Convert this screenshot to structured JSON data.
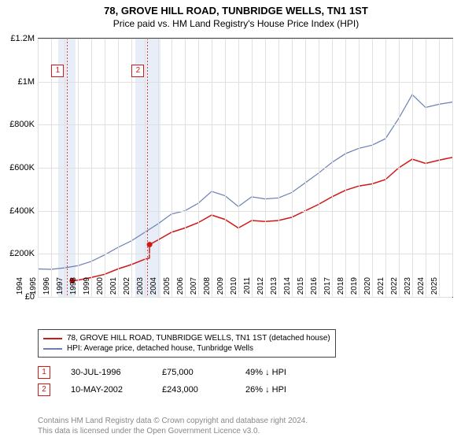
{
  "title": "78, GROVE HILL ROAD, TUNBRIDGE WELLS, TN1 1ST",
  "subtitle": "Price paid vs. HM Land Registry's House Price Index (HPI)",
  "chart": {
    "type": "line",
    "background_color": "#ffffff",
    "grid_color": "#e0e0e0",
    "axis_color": "#444444",
    "ylim": [
      0,
      1200000
    ],
    "yticks": [
      {
        "v": 0,
        "label": "£0"
      },
      {
        "v": 200000,
        "label": "£200K"
      },
      {
        "v": 400000,
        "label": "£400K"
      },
      {
        "v": 600000,
        "label": "£600K"
      },
      {
        "v": 800000,
        "label": "£800K"
      },
      {
        "v": 1000000,
        "label": "£1M"
      },
      {
        "v": 1200000,
        "label": "£1.2M"
      }
    ],
    "xlim": [
      1994,
      2025
    ],
    "xticks": [
      1994,
      1995,
      1996,
      1997,
      1998,
      1999,
      2000,
      2001,
      2002,
      2003,
      2004,
      2005,
      2006,
      2007,
      2008,
      2009,
      2010,
      2011,
      2012,
      2013,
      2014,
      2015,
      2016,
      2017,
      2018,
      2019,
      2020,
      2021,
      2022,
      2023,
      2024,
      2025
    ],
    "bands": [
      {
        "from": 1995.5,
        "to": 1996.8,
        "color": "#e8eef8"
      },
      {
        "from": 2001.3,
        "to": 2003.2,
        "color": "#e8eef8"
      }
    ],
    "markers": [
      {
        "id": "1",
        "x": 1996.2,
        "y": 1080000,
        "color": "#d01818"
      },
      {
        "id": "2",
        "x": 2002.2,
        "y": 1080000,
        "color": "#d01818"
      }
    ],
    "sale_points": [
      {
        "x": 1996.58,
        "y": 75000,
        "color": "#d01818"
      },
      {
        "x": 2002.36,
        "y": 243000,
        "color": "#d01818"
      }
    ],
    "series": [
      {
        "name": "prop",
        "label": "78, GROVE HILL ROAD, TUNBRIDGE WELLS, TN1 1ST (detached house)",
        "color": "#d01818",
        "width": 1.5,
        "data": [
          [
            1996.58,
            75000
          ],
          [
            1997,
            78000
          ],
          [
            1998,
            90000
          ],
          [
            1999,
            105000
          ],
          [
            2000,
            130000
          ],
          [
            2001,
            150000
          ],
          [
            2002,
            175000
          ],
          [
            2002.35,
            180000
          ],
          [
            2002.36,
            243000
          ],
          [
            2003,
            265000
          ],
          [
            2004,
            300000
          ],
          [
            2005,
            320000
          ],
          [
            2006,
            345000
          ],
          [
            2007,
            380000
          ],
          [
            2008,
            360000
          ],
          [
            2009,
            320000
          ],
          [
            2010,
            355000
          ],
          [
            2011,
            350000
          ],
          [
            2012,
            355000
          ],
          [
            2013,
            370000
          ],
          [
            2014,
            400000
          ],
          [
            2015,
            430000
          ],
          [
            2016,
            465000
          ],
          [
            2017,
            495000
          ],
          [
            2018,
            515000
          ],
          [
            2019,
            525000
          ],
          [
            2020,
            545000
          ],
          [
            2021,
            600000
          ],
          [
            2022,
            640000
          ],
          [
            2023,
            620000
          ],
          [
            2024,
            635000
          ],
          [
            2025,
            648000
          ]
        ]
      },
      {
        "name": "hpi",
        "label": "HPI: Average price, detached house, Tunbridge Wells",
        "color": "#6b7fb3",
        "width": 1.2,
        "data": [
          [
            1994,
            130000
          ],
          [
            1995,
            128000
          ],
          [
            1996,
            135000
          ],
          [
            1997,
            145000
          ],
          [
            1998,
            165000
          ],
          [
            1999,
            195000
          ],
          [
            2000,
            230000
          ],
          [
            2001,
            260000
          ],
          [
            2002,
            300000
          ],
          [
            2003,
            340000
          ],
          [
            2004,
            385000
          ],
          [
            2005,
            400000
          ],
          [
            2006,
            435000
          ],
          [
            2007,
            490000
          ],
          [
            2008,
            470000
          ],
          [
            2009,
            420000
          ],
          [
            2010,
            465000
          ],
          [
            2011,
            455000
          ],
          [
            2012,
            460000
          ],
          [
            2013,
            485000
          ],
          [
            2014,
            530000
          ],
          [
            2015,
            575000
          ],
          [
            2016,
            625000
          ],
          [
            2017,
            665000
          ],
          [
            2018,
            690000
          ],
          [
            2019,
            705000
          ],
          [
            2020,
            735000
          ],
          [
            2021,
            830000
          ],
          [
            2022,
            940000
          ],
          [
            2023,
            880000
          ],
          [
            2024,
            895000
          ],
          [
            2025,
            905000
          ]
        ]
      }
    ]
  },
  "legend": {
    "items": [
      {
        "color": "#d01818",
        "label": "78, GROVE HILL ROAD, TUNBRIDGE WELLS, TN1 1ST (detached house)"
      },
      {
        "color": "#6b7fb3",
        "label": "HPI: Average price, detached house, Tunbridge Wells"
      }
    ]
  },
  "sales": [
    {
      "id": "1",
      "color": "#d01818",
      "date": "30-JUL-1996",
      "price": "£75,000",
      "delta": "49% ↓ HPI"
    },
    {
      "id": "2",
      "color": "#d01818",
      "date": "10-MAY-2002",
      "price": "£243,000",
      "delta": "26% ↓ HPI"
    }
  ],
  "footer_line1": "Contains HM Land Registry data © Crown copyright and database right 2024.",
  "footer_line2": "This data is licensed under the Open Government Licence v3.0."
}
